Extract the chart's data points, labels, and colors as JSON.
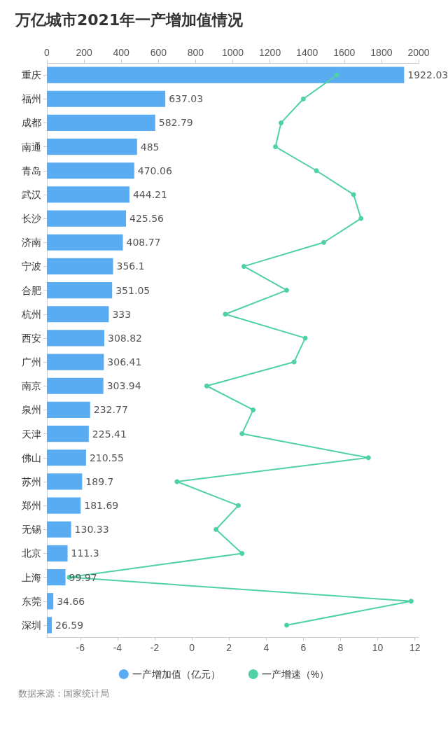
{
  "chart_data": {
    "type": "bar",
    "orientation": "horizontal",
    "title": "万亿城市2021年一产增加值情况",
    "categories": [
      "重庆",
      "福州",
      "成都",
      "南通",
      "青岛",
      "武汉",
      "长沙",
      "济南",
      "宁波",
      "合肥",
      "杭州",
      "西安",
      "广州",
      "南京",
      "泉州",
      "天津",
      "佛山",
      "苏州",
      "郑州",
      "无锡",
      "北京",
      "上海",
      "东莞",
      "深圳"
    ],
    "series": [
      {
        "name": "一产增加值（亿元）",
        "axis": "x2",
        "color": "#5aacf2",
        "values": [
          1922.03,
          637.03,
          582.79,
          485,
          470.06,
          444.21,
          425.56,
          408.77,
          356.1,
          351.05,
          333,
          308.82,
          306.41,
          303.94,
          232.77,
          225.41,
          210.55,
          189.7,
          181.69,
          130.33,
          111.3,
          99.97,
          34.66,
          26.59
        ],
        "value_labels": [
          "1922.03",
          "637.03",
          "582.79",
          "485",
          "470.06",
          "444.21",
          "425.56",
          "408.77",
          "356.1",
          "351.05",
          "333",
          "308.82",
          "306.41",
          "303.94",
          "232.77",
          "225.41",
          "210.55",
          "189.7",
          "181.69",
          "130.33",
          "111.3",
          "99.97",
          "34.66",
          "26.59"
        ]
      },
      {
        "name": "一产增速（%）",
        "type": "line",
        "color": "#4fd1a5",
        "values": [
          7.8,
          6.0,
          4.8,
          4.5,
          6.7,
          8.7,
          9.1,
          7.1,
          2.8,
          5.1,
          1.8,
          6.1,
          5.5,
          0.8,
          3.3,
          2.7,
          9.5,
          -0.8,
          2.5,
          1.3,
          2.7,
          -6.6,
          11.8,
          5.1
        ]
      }
    ],
    "x2lim": [
      0,
      2000
    ],
    "x2ticks": [
      0,
      200,
      400,
      600,
      800,
      1000,
      1200,
      1400,
      1600,
      1800,
      2000
    ],
    "xlim": [
      -7.8,
      12.2
    ],
    "xticks": [
      -6,
      -4,
      -2,
      0,
      2,
      4,
      6,
      8,
      10,
      12
    ],
    "grid": false,
    "legend": "bottom",
    "marker": "circle",
    "line_style": "solid",
    "annotations": [
      "数据来源：国家统计局"
    ]
  }
}
